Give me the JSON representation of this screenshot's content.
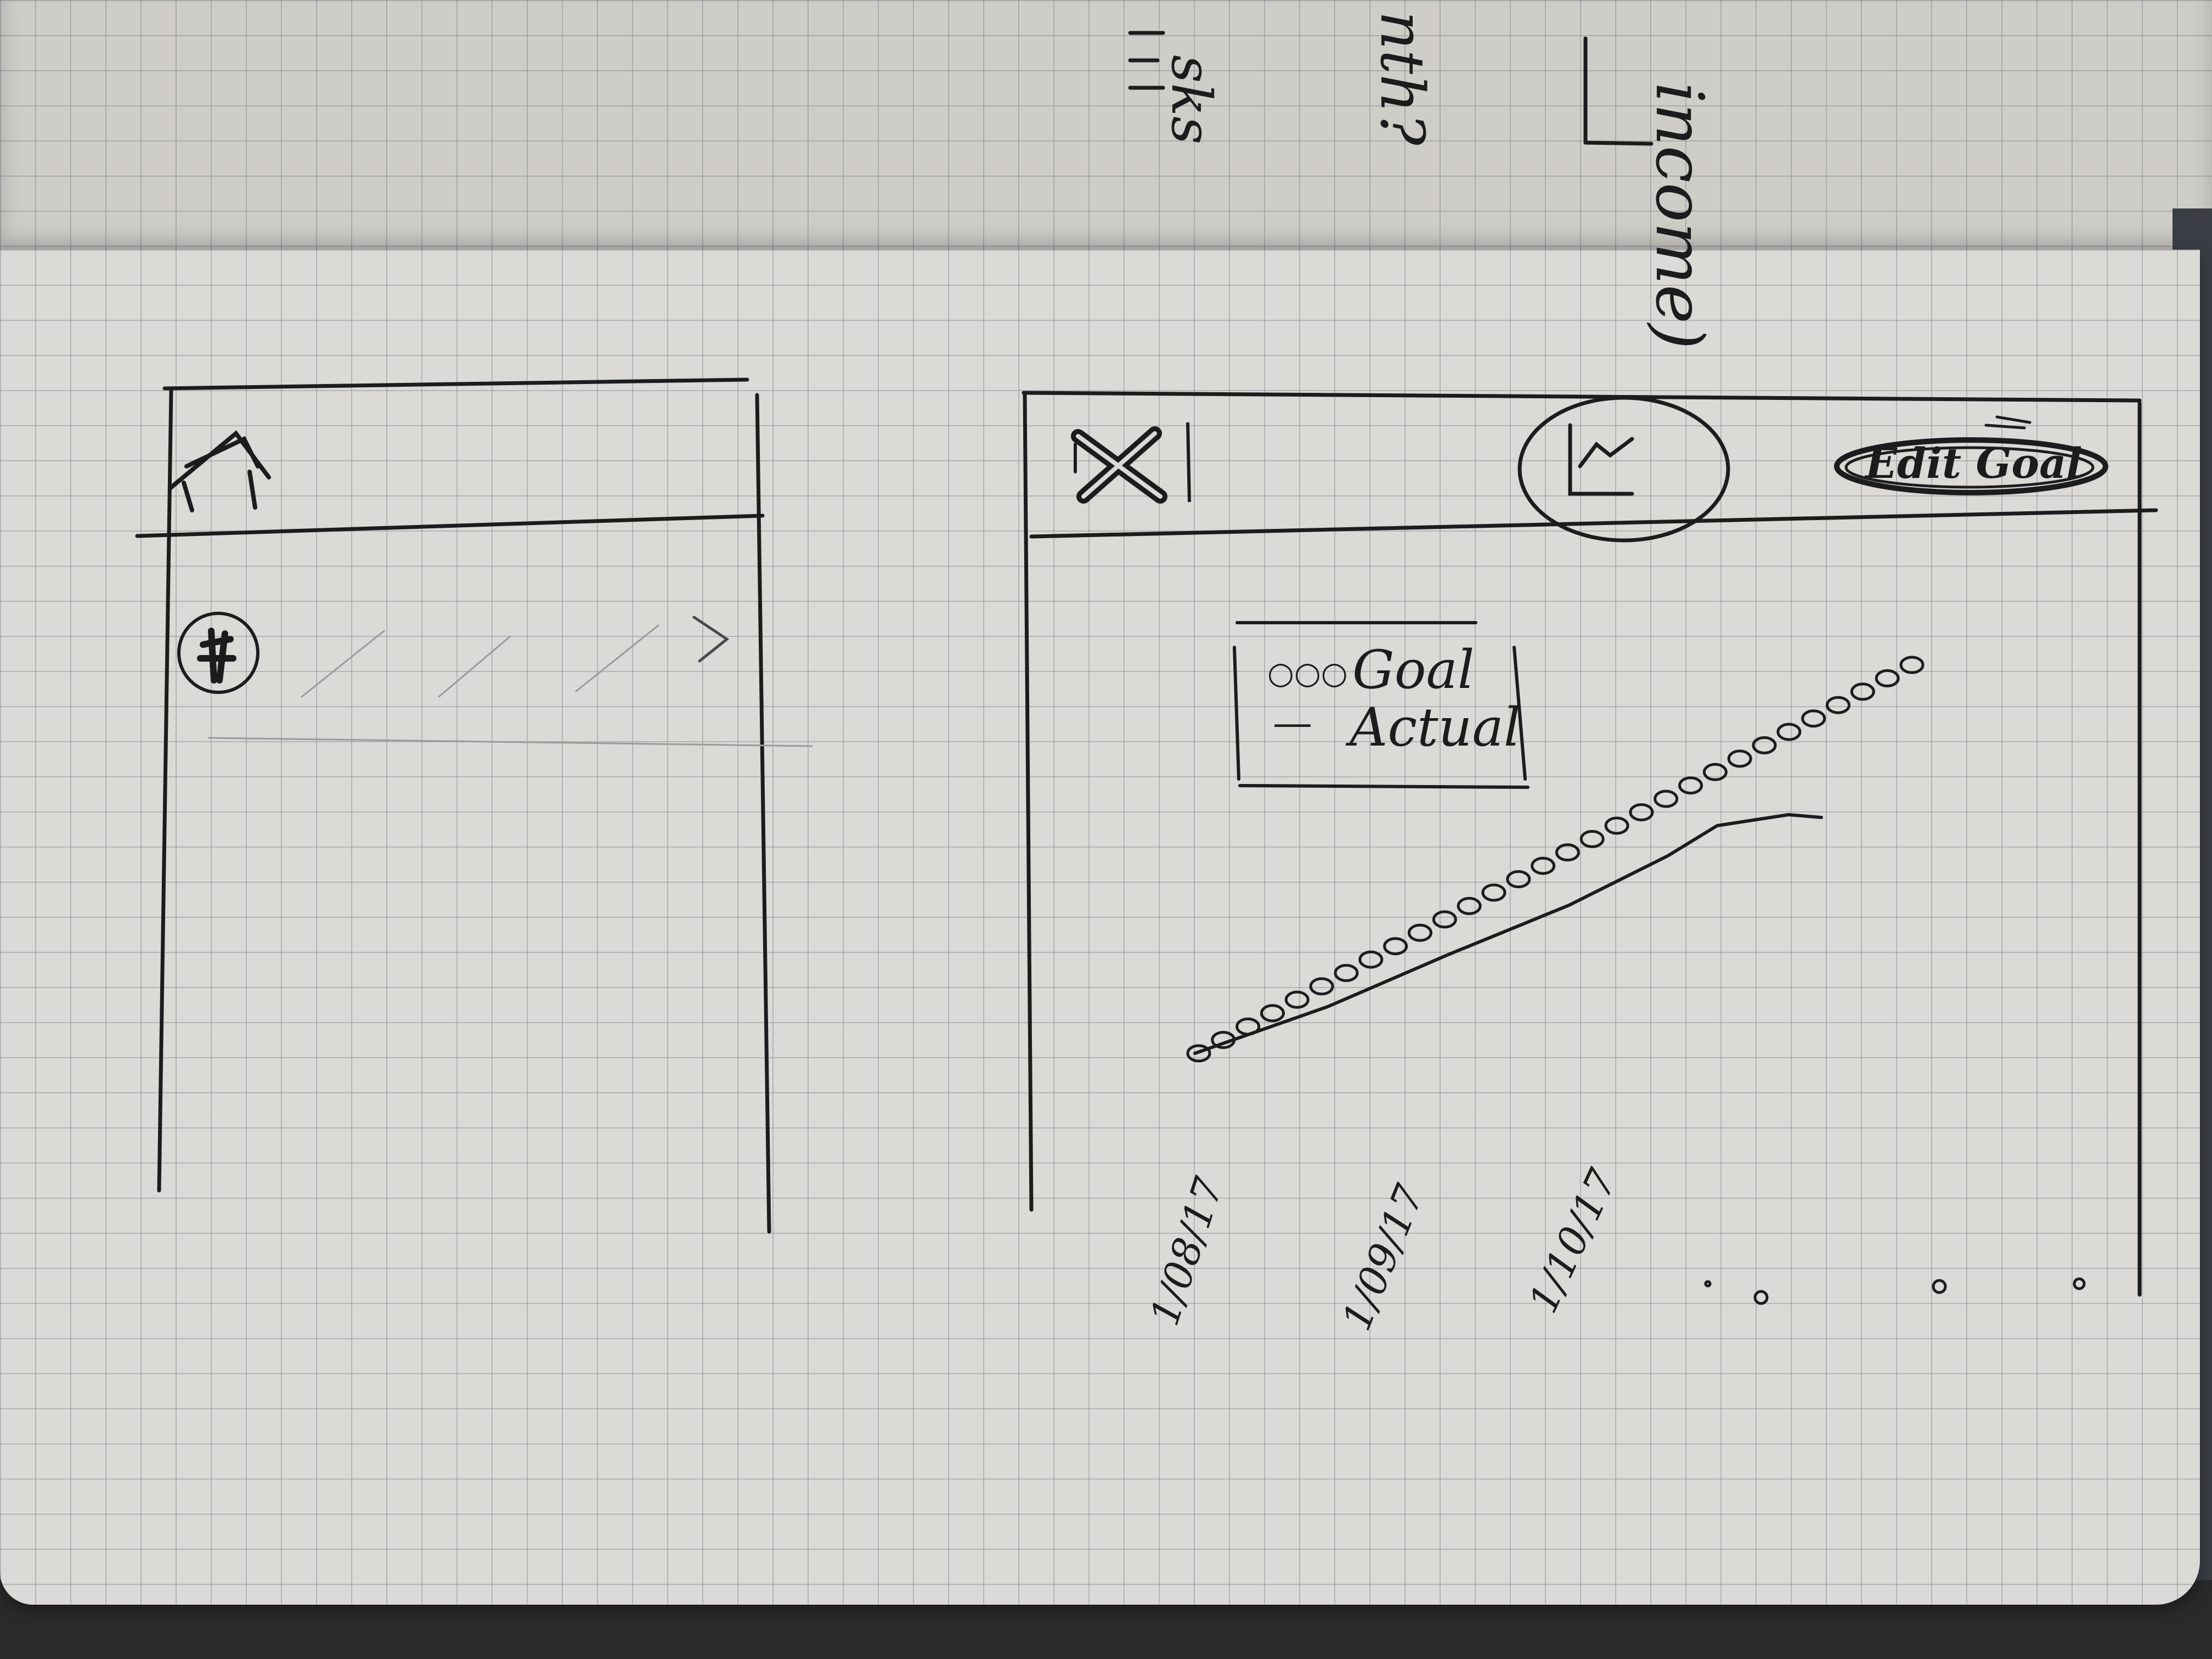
{
  "top_page_fragments": {
    "income_fragment": "income)",
    "month_fragment": "nth?",
    "tasks_fragment": "sks"
  },
  "wireframe_detail": {
    "legend": {
      "goal_marker": "○○○",
      "goal_label": "Goal",
      "actual_marker": "—",
      "actual_label": "Actual"
    },
    "edit_button_label": "Edit Goal",
    "x_ticks": [
      "1/08/17",
      "1/09/17",
      "1/10/17"
    ]
  },
  "chart_data": {
    "type": "line",
    "x": [
      "1/08/17",
      "1/09/17",
      "1/10/17"
    ],
    "series": [
      {
        "name": "Goal",
        "style": "dotted-circles"
      },
      {
        "name": "Actual",
        "style": "solid"
      }
    ]
  },
  "ink_color": "#1c1c1e",
  "paper_color": "#dcdad6"
}
